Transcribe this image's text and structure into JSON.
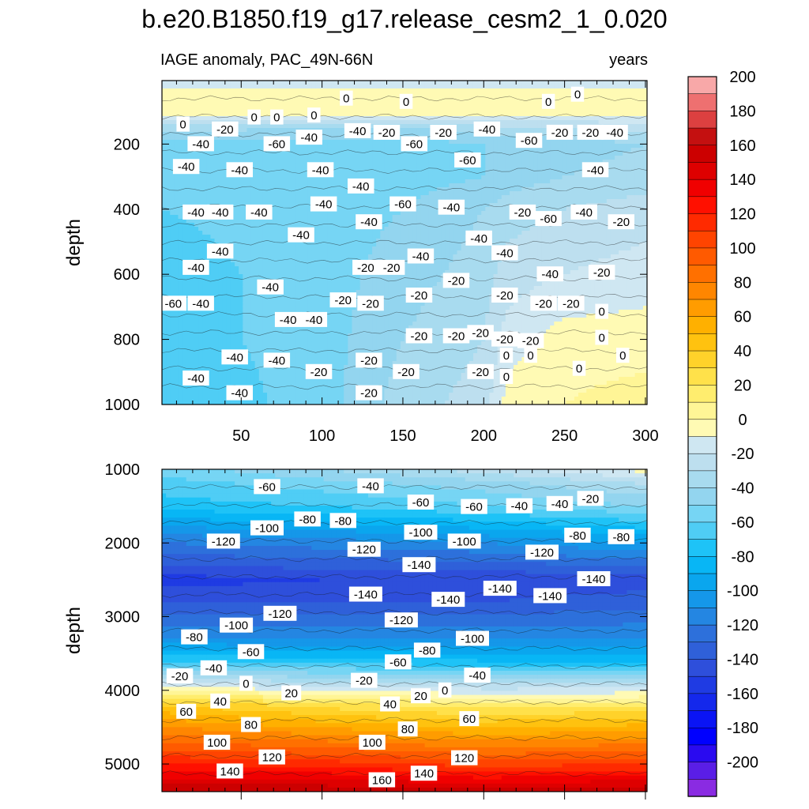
{
  "figure": {
    "title": "b.e20.B1850.f19_g17.release_cesm2_1_0.020"
  },
  "chart_data": [
    {
      "type": "heatmap",
      "panel": "upper",
      "title_left": "IAGE anomaly, PAC_49N-66N",
      "title_right": "years",
      "ylabel": "depth",
      "xlabel": "",
      "xlim": [
        1,
        301
      ],
      "ylim": [
        1000,
        5
      ],
      "xticks": [
        50,
        100,
        150,
        200,
        250,
        300
      ],
      "yticks": [
        200,
        400,
        600,
        800,
        1000
      ],
      "profile": {
        "depth": [
          5,
          60,
          110,
          150,
          200,
          300,
          400,
          600,
          800,
          1000
        ],
        "x": [
          1,
          100,
          150,
          200,
          215,
          250,
          301
        ],
        "values": [
          [
            -5,
            -5,
            -5,
            -5,
            -5,
            -5,
            -5
          ],
          [
            5,
            5,
            5,
            5,
            5,
            5,
            5
          ],
          [
            0,
            0,
            0,
            0,
            0,
            0,
            0
          ],
          [
            -25,
            -30,
            -30,
            -25,
            -20,
            -20,
            -15
          ],
          [
            -45,
            -45,
            -45,
            -40,
            -40,
            -35,
            -30
          ],
          [
            -50,
            -45,
            -45,
            -40,
            -35,
            -30,
            -25
          ],
          [
            -50,
            -45,
            -40,
            -30,
            -25,
            -20,
            -15
          ],
          [
            -55,
            -45,
            -35,
            -25,
            -15,
            -10,
            -5
          ],
          [
            -55,
            -45,
            -30,
            -20,
            -5,
            5,
            5
          ],
          [
            -60,
            -45,
            -25,
            -15,
            5,
            10,
            15
          ]
        ]
      },
      "contour_labels": [
        {
          "x": 14,
          "y": 140,
          "v": "0"
        },
        {
          "x": 40,
          "y": 155,
          "v": "-20"
        },
        {
          "x": 58,
          "y": 118,
          "v": "0"
        },
        {
          "x": 72,
          "y": 118,
          "v": "0"
        },
        {
          "x": 95,
          "y": 112,
          "v": "0"
        },
        {
          "x": 115,
          "y": 60,
          "v": "0"
        },
        {
          "x": 152,
          "y": 70,
          "v": "0"
        },
        {
          "x": 240,
          "y": 70,
          "v": "0"
        },
        {
          "x": 258,
          "y": 48,
          "v": "0"
        },
        {
          "x": 25,
          "y": 200,
          "v": "-40"
        },
        {
          "x": 72,
          "y": 200,
          "v": "-60"
        },
        {
          "x": 92,
          "y": 180,
          "v": "-40"
        },
        {
          "x": 122,
          "y": 160,
          "v": "-40"
        },
        {
          "x": 140,
          "y": 165,
          "v": "-20"
        },
        {
          "x": 157,
          "y": 200,
          "v": "-60"
        },
        {
          "x": 175,
          "y": 165,
          "v": "-20"
        },
        {
          "x": 202,
          "y": 155,
          "v": "-40"
        },
        {
          "x": 228,
          "y": 190,
          "v": "-60"
        },
        {
          "x": 247,
          "y": 165,
          "v": "-20"
        },
        {
          "x": 266,
          "y": 165,
          "v": "-20"
        },
        {
          "x": 281,
          "y": 165,
          "v": "-40"
        },
        {
          "x": 16,
          "y": 270,
          "v": "-40"
        },
        {
          "x": 49,
          "y": 280,
          "v": "-40"
        },
        {
          "x": 99,
          "y": 280,
          "v": "-40"
        },
        {
          "x": 190,
          "y": 250,
          "v": "-60"
        },
        {
          "x": 269,
          "y": 280,
          "v": "-40"
        },
        {
          "x": 124,
          "y": 330,
          "v": "-40"
        },
        {
          "x": 22,
          "y": 410,
          "v": "-40"
        },
        {
          "x": 37,
          "y": 410,
          "v": "-40"
        },
        {
          "x": 61,
          "y": 410,
          "v": "-40"
        },
        {
          "x": 101,
          "y": 385,
          "v": "-40"
        },
        {
          "x": 129,
          "y": 440,
          "v": "-40"
        },
        {
          "x": 150,
          "y": 385,
          "v": "-60"
        },
        {
          "x": 180,
          "y": 395,
          "v": "-40"
        },
        {
          "x": 224,
          "y": 410,
          "v": "-20"
        },
        {
          "x": 240,
          "y": 430,
          "v": "-60"
        },
        {
          "x": 262,
          "y": 410,
          "v": "-40"
        },
        {
          "x": 285,
          "y": 440,
          "v": "-20"
        },
        {
          "x": 37,
          "y": 530,
          "v": "-40"
        },
        {
          "x": 87,
          "y": 480,
          "v": "-40"
        },
        {
          "x": 197,
          "y": 490,
          "v": "-40"
        },
        {
          "x": 22,
          "y": 580,
          "v": "-40"
        },
        {
          "x": 127,
          "y": 580,
          "v": "-20"
        },
        {
          "x": 143,
          "y": 580,
          "v": "-20"
        },
        {
          "x": 161,
          "y": 545,
          "v": "-40"
        },
        {
          "x": 213,
          "y": 535,
          "v": "-40"
        },
        {
          "x": 68,
          "y": 640,
          "v": "-40"
        },
        {
          "x": 183,
          "y": 620,
          "v": "-20"
        },
        {
          "x": 241,
          "y": 600,
          "v": "-40"
        },
        {
          "x": 273,
          "y": 595,
          "v": "-20"
        },
        {
          "x": 8,
          "y": 690,
          "v": "-60"
        },
        {
          "x": 25,
          "y": 690,
          "v": "-40"
        },
        {
          "x": 113,
          "y": 680,
          "v": "-20"
        },
        {
          "x": 130,
          "y": 690,
          "v": "-20"
        },
        {
          "x": 160,
          "y": 665,
          "v": "-20"
        },
        {
          "x": 213,
          "y": 665,
          "v": "-20"
        },
        {
          "x": 237,
          "y": 690,
          "v": "-20"
        },
        {
          "x": 254,
          "y": 690,
          "v": "-20"
        },
        {
          "x": 79,
          "y": 740,
          "v": "-40"
        },
        {
          "x": 95,
          "y": 740,
          "v": "-40"
        },
        {
          "x": 273,
          "y": 715,
          "v": "0"
        },
        {
          "x": 160,
          "y": 790,
          "v": "-20"
        },
        {
          "x": 183,
          "y": 790,
          "v": "-20"
        },
        {
          "x": 198,
          "y": 780,
          "v": "-20"
        },
        {
          "x": 213,
          "y": 800,
          "v": "-20"
        },
        {
          "x": 229,
          "y": 805,
          "v": "-20"
        },
        {
          "x": 273,
          "y": 795,
          "v": "0"
        },
        {
          "x": 46,
          "y": 855,
          "v": "-40"
        },
        {
          "x": 72,
          "y": 865,
          "v": "-40"
        },
        {
          "x": 129,
          "y": 865,
          "v": "-20"
        },
        {
          "x": 214,
          "y": 850,
          "v": "0"
        },
        {
          "x": 229,
          "y": 850,
          "v": "0"
        },
        {
          "x": 286,
          "y": 850,
          "v": "0"
        },
        {
          "x": 22,
          "y": 920,
          "v": "-40"
        },
        {
          "x": 98,
          "y": 900,
          "v": "-20"
        },
        {
          "x": 152,
          "y": 900,
          "v": "-20"
        },
        {
          "x": 198,
          "y": 900,
          "v": "-20"
        },
        {
          "x": 214,
          "y": 915,
          "v": "0"
        },
        {
          "x": 259,
          "y": 890,
          "v": "0"
        },
        {
          "x": 49,
          "y": 965,
          "v": "-40"
        },
        {
          "x": 129,
          "y": 965,
          "v": "-20"
        }
      ]
    },
    {
      "type": "heatmap",
      "panel": "lower",
      "ylabel": "depth",
      "xlabel": "",
      "xlim": [
        1,
        301
      ],
      "ylim": [
        5375,
        1000
      ],
      "xticks": [
        50,
        100,
        150,
        200,
        250,
        300
      ],
      "yticks": [
        1000,
        2000,
        3000,
        4000,
        5000
      ],
      "profile": {
        "depth": [
          1000,
          1200,
          1500,
          2000,
          2500,
          2800,
          3300,
          3600,
          3800,
          3950,
          4200,
          4600,
          5000,
          5375
        ],
        "x": [
          1,
          100,
          200,
          301
        ],
        "values": [
          [
            -45,
            -30,
            -15,
            5
          ],
          [
            -55,
            -45,
            -35,
            -20
          ],
          [
            -65,
            -60,
            -50,
            -40
          ],
          [
            -110,
            -105,
            -100,
            -90
          ],
          [
            -145,
            -140,
            -140,
            -135
          ],
          [
            -130,
            -130,
            -130,
            -125
          ],
          [
            -100,
            -100,
            -100,
            -100
          ],
          [
            -60,
            -65,
            -70,
            -70
          ],
          [
            -25,
            -35,
            -40,
            -40
          ],
          [
            0,
            -10,
            -15,
            -15
          ],
          [
            50,
            35,
            25,
            30
          ],
          [
            90,
            80,
            70,
            75
          ],
          [
            130,
            125,
            115,
            120
          ],
          [
            170,
            170,
            165,
            170
          ]
        ]
      },
      "contour_labels": [
        {
          "x": 66,
          "y": 1240,
          "v": "-60"
        },
        {
          "x": 130,
          "y": 1230,
          "v": "-40"
        },
        {
          "x": 161,
          "y": 1450,
          "v": "-60"
        },
        {
          "x": 194,
          "y": 1510,
          "v": "-60"
        },
        {
          "x": 222,
          "y": 1500,
          "v": "-40"
        },
        {
          "x": 247,
          "y": 1470,
          "v": "-40"
        },
        {
          "x": 266,
          "y": 1400,
          "v": "-20"
        },
        {
          "x": 66,
          "y": 1800,
          "v": "-100"
        },
        {
          "x": 91,
          "y": 1680,
          "v": "-80"
        },
        {
          "x": 113,
          "y": 1700,
          "v": "-80"
        },
        {
          "x": 161,
          "y": 1860,
          "v": "-100"
        },
        {
          "x": 188,
          "y": 1980,
          "v": "-100"
        },
        {
          "x": 39,
          "y": 1980,
          "v": "-120"
        },
        {
          "x": 126,
          "y": 2090,
          "v": "-120"
        },
        {
          "x": 160,
          "y": 2300,
          "v": "-140"
        },
        {
          "x": 236,
          "y": 2130,
          "v": "-120"
        },
        {
          "x": 258,
          "y": 1900,
          "v": "-80"
        },
        {
          "x": 285,
          "y": 1920,
          "v": "-80"
        },
        {
          "x": 127,
          "y": 2700,
          "v": "-140"
        },
        {
          "x": 178,
          "y": 2770,
          "v": "-140"
        },
        {
          "x": 210,
          "y": 2620,
          "v": "-140"
        },
        {
          "x": 241,
          "y": 2720,
          "v": "-140"
        },
        {
          "x": 268,
          "y": 2490,
          "v": "-140"
        },
        {
          "x": 74,
          "y": 2960,
          "v": "-120"
        },
        {
          "x": 149,
          "y": 3050,
          "v": "-120"
        },
        {
          "x": 47,
          "y": 3120,
          "v": "-100"
        },
        {
          "x": 193,
          "y": 3300,
          "v": "-100"
        },
        {
          "x": 21,
          "y": 3280,
          "v": "-80"
        },
        {
          "x": 165,
          "y": 3460,
          "v": "-80"
        },
        {
          "x": 56,
          "y": 3480,
          "v": "-60"
        },
        {
          "x": 147,
          "y": 3620,
          "v": "-60"
        },
        {
          "x": 33,
          "y": 3700,
          "v": "-40"
        },
        {
          "x": 196,
          "y": 3800,
          "v": "-40"
        },
        {
          "x": 12,
          "y": 3810,
          "v": "-20"
        },
        {
          "x": 126,
          "y": 3870,
          "v": "-20"
        },
        {
          "x": 53,
          "y": 3910,
          "v": "0"
        },
        {
          "x": 176,
          "y": 4000,
          "v": "0"
        },
        {
          "x": 81,
          "y": 4040,
          "v": "20"
        },
        {
          "x": 161,
          "y": 4080,
          "v": "20"
        },
        {
          "x": 37,
          "y": 4150,
          "v": "40"
        },
        {
          "x": 142,
          "y": 4190,
          "v": "40"
        },
        {
          "x": 16,
          "y": 4290,
          "v": "60"
        },
        {
          "x": 191,
          "y": 4390,
          "v": "60"
        },
        {
          "x": 56,
          "y": 4470,
          "v": "80"
        },
        {
          "x": 153,
          "y": 4530,
          "v": "80"
        },
        {
          "x": 35,
          "y": 4710,
          "v": "100"
        },
        {
          "x": 131,
          "y": 4710,
          "v": "100"
        },
        {
          "x": 69,
          "y": 4910,
          "v": "120"
        },
        {
          "x": 188,
          "y": 4920,
          "v": "120"
        },
        {
          "x": 43,
          "y": 5100,
          "v": "140"
        },
        {
          "x": 163,
          "y": 5130,
          "v": "140"
        },
        {
          "x": 137,
          "y": 5220,
          "v": "160"
        }
      ]
    }
  ],
  "colorbar": {
    "levels": [
      -210,
      -200,
      -190,
      -180,
      -170,
      -160,
      -150,
      -140,
      -130,
      -120,
      -110,
      -100,
      -90,
      -80,
      -70,
      -60,
      -50,
      -40,
      -30,
      -20,
      -10,
      0,
      10,
      20,
      30,
      40,
      50,
      60,
      70,
      80,
      90,
      100,
      110,
      120,
      130,
      140,
      150,
      160,
      170,
      180,
      190,
      200,
      210
    ],
    "colors": [
      "#8a2be2",
      "#5a1ee6",
      "#2a0af0",
      "#0000ff",
      "#0a14f5",
      "#1428ec",
      "#1f3be3",
      "#2e4fdb",
      "#2f60d9",
      "#2d70db",
      "#2486e2",
      "#1597e9",
      "#0aa6ee",
      "#08b6f5",
      "#1ec3f7",
      "#4fcdf5",
      "#76d5f4",
      "#93d5ef",
      "#a8dbef",
      "#bddfef",
      "#cfe7f2",
      "#fffab4",
      "#fff596",
      "#ffed6e",
      "#ffe14a",
      "#ffd22a",
      "#ffc20f",
      "#ffb000",
      "#ff9c00",
      "#ff8600",
      "#ff7000",
      "#ff5a00",
      "#ff4400",
      "#ff2a00",
      "#ff1000",
      "#f00000",
      "#de0000",
      "#cc0000",
      "#c41010",
      "#dc4040",
      "#ee7070",
      "#f8a8a8"
    ],
    "tick_labels": [
      "-200",
      "-180",
      "-160",
      "-140",
      "-120",
      "-100",
      "-80",
      "-60",
      "-40",
      "-20",
      "0",
      "20",
      "40",
      "60",
      "80",
      "100",
      "120",
      "140",
      "160",
      "180",
      "200"
    ]
  }
}
